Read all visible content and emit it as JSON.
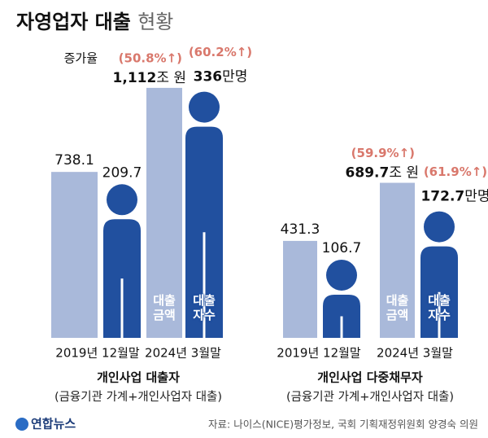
{
  "title": "자영업자 대출",
  "title_light": "현황",
  "chart_data": [
    {
      "type": "pictograph-bar",
      "title": "개인사업 대출자",
      "subtitle": "(금융기관 가계+개인사업자 대출)",
      "categories": [
        "2019년 12월말",
        "2024년 3월말"
      ],
      "change_title": "증가율",
      "ylim": [
        0,
        1300
      ],
      "y2lim": [
        0,
        400
      ],
      "series": [
        {
          "name": "대출 금액",
          "color": "#a9b9da",
          "values": [
            738.1,
            1112
          ],
          "value_labels": [
            "738.1",
            "1,112"
          ],
          "unit_label": "조 원",
          "change_labels": [
            null,
            "(50.8%↑)"
          ]
        },
        {
          "name": "대출 자수",
          "color": "#21509f",
          "axis": "y2",
          "values": [
            209.7,
            336
          ],
          "value_labels": [
            "209.7",
            "336"
          ],
          "unit_label": "만명",
          "change_labels": [
            null,
            "(60.2%↑)"
          ]
        }
      ]
    },
    {
      "type": "pictograph-bar",
      "title": "개인사업 다중채무자",
      "subtitle": "(금융기관 가계+개인사업자 대출)",
      "categories": [
        "2019년 12월말",
        "2024년 3월말"
      ],
      "ylim": [
        0,
        1300
      ],
      "y2lim": [
        0,
        400
      ],
      "series": [
        {
          "name": "대출 금액",
          "color": "#a9b9da",
          "values": [
            431.3,
            689.7
          ],
          "value_labels": [
            "431.3",
            "689.7"
          ],
          "unit_label": "조 원",
          "change_labels": [
            null,
            "(59.9%↑)"
          ]
        },
        {
          "name": "대출 자수",
          "color": "#21509f",
          "axis": "y2",
          "values": [
            106.7,
            172.7
          ],
          "value_labels": [
            "106.7",
            "172.7"
          ],
          "unit_label": "만명",
          "change_labels": [
            null,
            "(61.9%↑)"
          ]
        }
      ]
    }
  ],
  "logo": "연합뉴스",
  "source": "자료: 나이스(NICE)평가정보, 국회 기획재정위원회 양경숙 의원"
}
